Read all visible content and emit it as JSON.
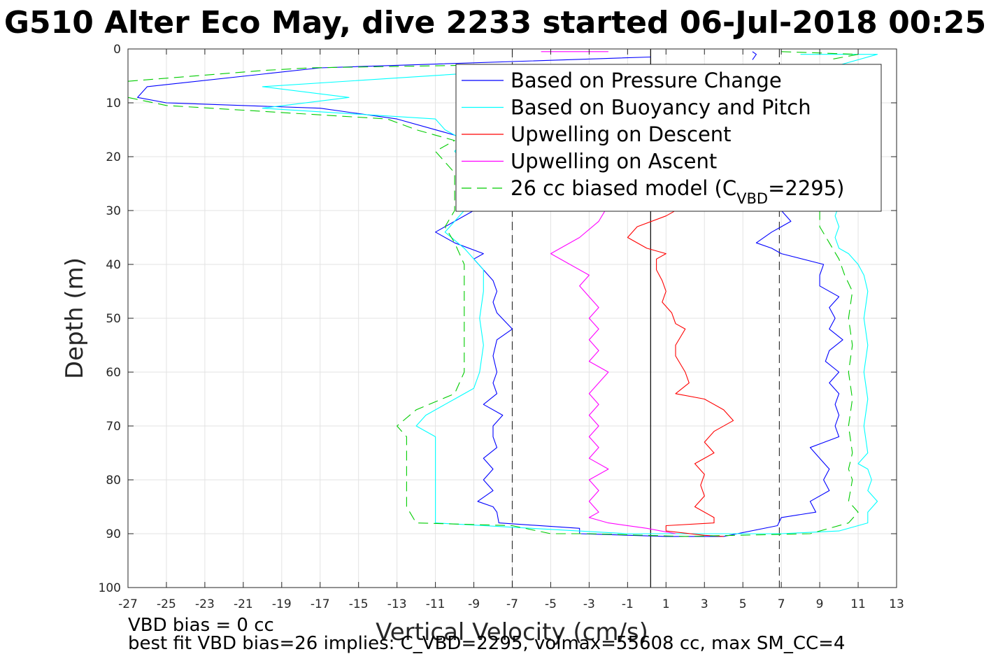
{
  "chart_data": {
    "type": "line",
    "title": "G510 Alter Eco May, dive 2233 started 06-Jul-2018 00:25",
    "xlabel": "Vertical Velocity (cm/s)",
    "ylabel": "Depth (m)",
    "xlim": [
      -27,
      13
    ],
    "ylim": [
      0,
      100
    ],
    "y_reversed": true,
    "grid": true,
    "xticks": [
      "-27",
      "-25",
      "-23",
      "-21",
      "-19",
      "-17",
      "-15",
      "-13",
      "-11",
      "-9",
      "-7",
      "-5",
      "-3",
      "-1",
      "1",
      "3",
      "5",
      "7",
      "9",
      "11",
      "13"
    ],
    "yticks": [
      "0",
      "10",
      "20",
      "30",
      "40",
      "50",
      "60",
      "70",
      "80",
      "90",
      "100"
    ],
    "legend_position": "top-right",
    "reference_lines": [
      {
        "x": 0.2,
        "style": "solid",
        "color": "#000000"
      },
      {
        "x": -7,
        "style": "dashed",
        "color": "#333333"
      },
      {
        "x": 6.9,
        "style": "dashed",
        "color": "#333333"
      }
    ],
    "series": [
      {
        "name": "Based on Pressure Change",
        "color": "#0000ff",
        "style": "solid",
        "segments": [
          [
            [
              0.2,
              1.5
            ],
            [
              -17,
              3.5
            ],
            [
              -26,
              7
            ],
            [
              -26.5,
              9
            ],
            [
              -25,
              10
            ],
            [
              -17,
              11
            ],
            [
              -13,
              13
            ],
            [
              -10,
              16
            ],
            [
              -9,
              18
            ],
            [
              -9,
              30
            ],
            [
              -10,
              32
            ],
            [
              -11,
              34
            ],
            [
              -10,
              36
            ],
            [
              -8.5,
              38
            ],
            [
              -9,
              39
            ],
            [
              -8.5,
              41
            ],
            [
              -8,
              43
            ],
            [
              -7.8,
              45
            ],
            [
              -8,
              47
            ],
            [
              -7.8,
              49
            ],
            [
              -7,
              52
            ],
            [
              -7.8,
              54
            ],
            [
              -8,
              57
            ],
            [
              -7.8,
              60
            ],
            [
              -8,
              62
            ],
            [
              -7.8,
              64
            ],
            [
              -8.5,
              66
            ],
            [
              -7.5,
              68
            ],
            [
              -8,
              70
            ],
            [
              -8,
              72
            ],
            [
              -7.8,
              74
            ],
            [
              -8.5,
              76
            ],
            [
              -8,
              78
            ],
            [
              -8.5,
              80
            ],
            [
              -8,
              82
            ],
            [
              -8.8,
              84
            ],
            [
              -8,
              85
            ],
            [
              -7.8,
              86
            ],
            [
              -7.7,
              88
            ],
            [
              -3.5,
              89
            ],
            [
              -3.5,
              90
            ],
            [
              1,
              90.5
            ],
            [
              4,
              90.5
            ],
            [
              6.8,
              88.5
            ],
            [
              7,
              87
            ],
            [
              8.8,
              86
            ],
            [
              8.5,
              84
            ],
            [
              9.5,
              82
            ],
            [
              9.2,
              80
            ],
            [
              9.5,
              78
            ],
            [
              9,
              76
            ],
            [
              8.5,
              74
            ],
            [
              10,
              72
            ],
            [
              9.8,
              70
            ],
            [
              10,
              68
            ],
            [
              9.8,
              66
            ],
            [
              10,
              64
            ],
            [
              9.5,
              62
            ],
            [
              10,
              60
            ],
            [
              9.3,
              58
            ],
            [
              9.5,
              56
            ],
            [
              10.2,
              54
            ],
            [
              9.5,
              52
            ],
            [
              9.8,
              50
            ],
            [
              9.5,
              48
            ],
            [
              10,
              46
            ],
            [
              9,
              44
            ],
            [
              9,
              42
            ],
            [
              9.2,
              40
            ],
            [
              7,
              38
            ],
            [
              6.5,
              37
            ],
            [
              5.7,
              36
            ],
            [
              6.5,
              34
            ],
            [
              7,
              33
            ],
            [
              7.5,
              32
            ],
            [
              7,
              30
            ]
          ],
          [
            [
              5.5,
              0.5
            ],
            [
              5.7,
              1
            ],
            [
              5.5,
              2
            ]
          ]
        ]
      },
      {
        "name": "Based on Buoyancy and Pitch",
        "color": "#00ffff",
        "style": "solid",
        "segments": [
          [
            [
              -7,
              4
            ],
            [
              -20,
              7
            ],
            [
              -15.5,
              9
            ],
            [
              -20,
              11
            ],
            [
              -11,
              13
            ],
            [
              -10.5,
              15
            ],
            [
              -9.5,
              17
            ],
            [
              -10,
              19
            ],
            [
              -9.5,
              21
            ],
            [
              -9.5,
              23
            ],
            [
              -9.5,
              30
            ],
            [
              -10,
              32
            ],
            [
              -10.5,
              34
            ],
            [
              -9.5,
              37
            ],
            [
              -9,
              39
            ],
            [
              -8.5,
              41
            ],
            [
              -8.5,
              45
            ],
            [
              -8.7,
              50
            ],
            [
              -8.5,
              55
            ],
            [
              -8.7,
              60
            ],
            [
              -9,
              63
            ],
            [
              -10,
              65
            ],
            [
              -10.5,
              66
            ],
            [
              -11.5,
              68
            ],
            [
              -12,
              70
            ],
            [
              -11,
              72
            ],
            [
              -11,
              76
            ],
            [
              -11,
              80
            ],
            [
              -11,
              85
            ],
            [
              -11,
              88
            ],
            [
              -1,
              90
            ],
            [
              7,
              90
            ],
            [
              10,
              89.5
            ],
            [
              11.5,
              88
            ],
            [
              11.5,
              86
            ],
            [
              12,
              84
            ],
            [
              11.5,
              82
            ],
            [
              11.7,
              80
            ],
            [
              11.5,
              78
            ],
            [
              11,
              77
            ],
            [
              11.5,
              75
            ],
            [
              11.3,
              70
            ],
            [
              11.5,
              65
            ],
            [
              11.3,
              60
            ],
            [
              11.5,
              55
            ],
            [
              11.3,
              50
            ],
            [
              11.5,
              45
            ],
            [
              11.3,
              42
            ],
            [
              11,
              40
            ],
            [
              10.5,
              38
            ],
            [
              10,
              37
            ],
            [
              9.8,
              35
            ],
            [
              10,
              33
            ],
            [
              9.8,
              31
            ],
            [
              10,
              29
            ]
          ],
          [
            [
              8,
              1
            ],
            [
              12,
              1
            ],
            [
              10,
              3
            ],
            [
              9,
              4
            ]
          ]
        ]
      },
      {
        "name": "Upwelling on Descent",
        "color": "#ff0000",
        "style": "solid",
        "segments": [
          [
            [
              2,
              29
            ],
            [
              1,
              31
            ],
            [
              -0.5,
              33
            ],
            [
              -1,
              35
            ],
            [
              0,
              37
            ],
            [
              1,
              38
            ],
            [
              0.5,
              39
            ],
            [
              0.5,
              41
            ],
            [
              0.8,
              43
            ],
            [
              1,
              45
            ],
            [
              0.8,
              47
            ],
            [
              1.3,
              49
            ],
            [
              1.5,
              51
            ],
            [
              2,
              52
            ],
            [
              1.5,
              55
            ],
            [
              1.5,
              57
            ],
            [
              2,
              60
            ],
            [
              2.2,
              62
            ],
            [
              1.5,
              64
            ],
            [
              3,
              65
            ],
            [
              4,
              67
            ],
            [
              4.5,
              69
            ],
            [
              3.5,
              71
            ],
            [
              3,
              73
            ],
            [
              3.5,
              75
            ],
            [
              2.5,
              77
            ],
            [
              3,
              79
            ],
            [
              2.8,
              81
            ],
            [
              3,
              83
            ],
            [
              2.5,
              85
            ],
            [
              3.5,
              87
            ],
            [
              3.5,
              88
            ],
            [
              1,
              88.5
            ],
            [
              1,
              89.5
            ],
            [
              3,
              90.3
            ],
            [
              4,
              90.5
            ]
          ]
        ]
      },
      {
        "name": "Upwelling on Ascent",
        "color": "#ff00ff",
        "style": "solid",
        "segments": [
          [
            [
              -2,
              29
            ],
            [
              -2.5,
              32
            ],
            [
              -3.5,
              35
            ],
            [
              -5,
              38
            ],
            [
              -4,
              40
            ],
            [
              -3,
              42
            ],
            [
              -3.5,
              44
            ],
            [
              -3,
              46
            ],
            [
              -2.5,
              48
            ],
            [
              -3,
              50
            ],
            [
              -2.5,
              52
            ],
            [
              -3,
              54
            ],
            [
              -2.5,
              56
            ],
            [
              -3,
              58
            ],
            [
              -2,
              60
            ],
            [
              -2.5,
              62
            ],
            [
              -3,
              64
            ],
            [
              -2.5,
              66
            ],
            [
              -3,
              68
            ],
            [
              -2.5,
              70
            ],
            [
              -3,
              72
            ],
            [
              -2.5,
              74
            ],
            [
              -3,
              76
            ],
            [
              -2,
              78
            ],
            [
              -3,
              80
            ],
            [
              -2.5,
              82
            ],
            [
              -3,
              84
            ],
            [
              -2.5,
              86
            ],
            [
              -3,
              87
            ],
            [
              -2,
              88
            ],
            [
              0,
              89
            ],
            [
              1.5,
              90
            ]
          ],
          [
            [
              -5.5,
              0.5
            ],
            [
              -2,
              0.5
            ]
          ]
        ]
      },
      {
        "name": "26 cc biased model (C_VBD=2295)",
        "color": "#00cc00",
        "style": "dashed",
        "segments": [
          [
            [
              -27,
              6
            ],
            [
              -20,
              4
            ],
            [
              -17.5,
              3.5
            ],
            [
              -9,
              3
            ],
            [
              -2,
              3
            ]
          ],
          [
            [
              -27,
              9
            ],
            [
              -25,
              10.5
            ],
            [
              -13.5,
              13
            ],
            [
              -12,
              15
            ],
            [
              -10,
              17
            ],
            [
              -11,
              19
            ],
            [
              -10.5,
              21
            ],
            [
              -10,
              23
            ],
            [
              -10,
              30
            ],
            [
              -10.5,
              33
            ],
            [
              -10,
              36
            ],
            [
              -9.5,
              40
            ],
            [
              -9.5,
              45
            ],
            [
              -9.5,
              50
            ],
            [
              -9.5,
              55
            ],
            [
              -9.5,
              60
            ],
            [
              -10,
              64
            ],
            [
              -12,
              67
            ],
            [
              -13,
              70
            ],
            [
              -12.5,
              72
            ],
            [
              -12.5,
              76
            ],
            [
              -12.5,
              80
            ],
            [
              -12.5,
              85
            ],
            [
              -12,
              88
            ],
            [
              -7,
              88.5
            ],
            [
              -5,
              90
            ],
            [
              -3,
              90
            ],
            [
              2,
              90.5
            ],
            [
              8.5,
              90
            ],
            [
              10.5,
              88
            ],
            [
              11,
              86
            ],
            [
              10.5,
              84
            ],
            [
              10.7,
              80
            ],
            [
              10.5,
              78
            ],
            [
              10.7,
              75
            ],
            [
              10.5,
              70
            ],
            [
              10.7,
              65
            ],
            [
              10.5,
              60
            ],
            [
              10.7,
              55
            ],
            [
              10.5,
              50
            ],
            [
              10.7,
              45
            ],
            [
              10.3,
              42
            ],
            [
              10,
              39
            ],
            [
              9.5,
              36
            ],
            [
              9,
              33
            ],
            [
              9,
              30
            ]
          ],
          [
            [
              7,
              0.5
            ],
            [
              11,
              1
            ],
            [
              9.5,
              2
            ]
          ]
        ]
      }
    ],
    "legend_entries": [
      {
        "label": "Based on Pressure Change",
        "color": "#0000ff",
        "style": "solid"
      },
      {
        "label": "Based on Buoyancy and Pitch",
        "color": "#00ffff",
        "style": "solid"
      },
      {
        "label": "Upwelling on Descent",
        "color": "#ff0000",
        "style": "solid"
      },
      {
        "label": "Upwelling on Ascent",
        "color": "#ff00ff",
        "style": "solid"
      },
      {
        "label_main": "26 cc biased model (C",
        "label_sub": "VBD",
        "label_tail": "=2295)",
        "color": "#00cc00",
        "style": "dashed"
      }
    ],
    "annotations": {
      "bias_line": "VBD bias = 0 cc",
      "fit_line": "best fit VBD bias=26 implies: C_VBD=2295, volmax=55608 cc, max SM_CC=4"
    }
  }
}
